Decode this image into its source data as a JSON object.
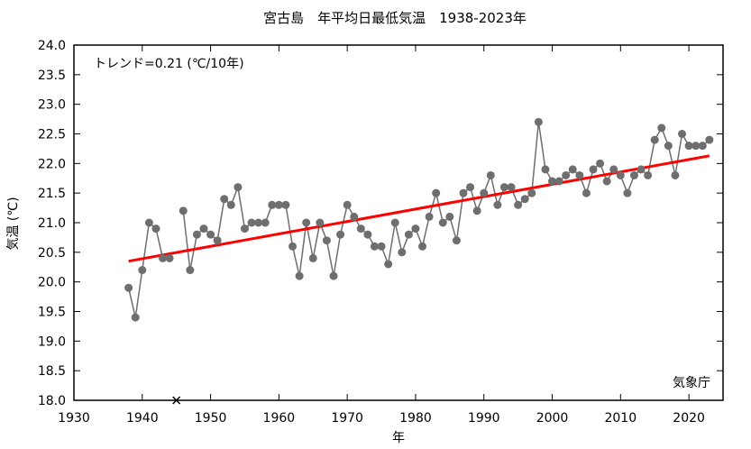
{
  "chart_data": {
    "type": "line",
    "title": "宮古島　年平均日最低気温　1938-2023年",
    "xlabel": "年",
    "ylabel": "気温 (℃)",
    "xlim": [
      1930,
      2025
    ],
    "ylim": [
      18.0,
      24.0
    ],
    "x_ticks": [
      "1930",
      "1940",
      "1950",
      "1960",
      "1970",
      "1980",
      "1990",
      "2000",
      "2010",
      "2020"
    ],
    "y_ticks": [
      "18.0",
      "18.5",
      "19.0",
      "19.5",
      "20.0",
      "20.5",
      "21.0",
      "21.5",
      "22.0",
      "22.5",
      "23.0",
      "23.5",
      "24.0"
    ],
    "trend_label": "トレンド=0.21 (℃/10年)",
    "source_label": "気象庁",
    "grid": false,
    "colors": {
      "series": "#6e6e6e",
      "trend": "#ff0000",
      "missing": "#000000"
    },
    "series": [
      {
        "x": [
          1938,
          1939,
          1940,
          1941,
          1942,
          1943,
          1944,
          1946,
          1947,
          1948,
          1949,
          1950,
          1951,
          1952,
          1953,
          1954,
          1955,
          1956,
          1957,
          1958,
          1959,
          1960,
          1961,
          1962,
          1963,
          1964,
          1965,
          1966,
          1967,
          1968,
          1969,
          1970,
          1971,
          1972,
          1973,
          1974,
          1975,
          1976,
          1977,
          1978,
          1979,
          1980,
          1981,
          1982,
          1983,
          1984,
          1985,
          1986,
          1987,
          1988,
          1989,
          1990,
          1991,
          1992,
          1993,
          1994,
          1995,
          1996,
          1997,
          1998,
          1999,
          2000,
          2001,
          2002,
          2003,
          2004,
          2005,
          2006,
          2007,
          2008,
          2009,
          2010,
          2011,
          2012,
          2013,
          2014,
          2015,
          2016,
          2017,
          2018,
          2019,
          2020,
          2021,
          2022,
          2023
        ],
        "values": [
          19.9,
          19.4,
          20.2,
          21.0,
          20.9,
          20.4,
          20.4,
          21.2,
          20.2,
          20.8,
          20.9,
          20.8,
          20.7,
          21.4,
          21.3,
          21.6,
          20.9,
          21.0,
          21.0,
          21.0,
          21.3,
          21.3,
          21.3,
          20.6,
          20.1,
          21.0,
          20.4,
          21.0,
          20.7,
          20.1,
          20.8,
          21.3,
          21.1,
          20.9,
          20.8,
          20.6,
          20.6,
          20.3,
          21.0,
          20.5,
          20.8,
          20.9,
          20.6,
          21.1,
          21.5,
          21.0,
          21.1,
          20.7,
          21.5,
          21.6,
          21.2,
          21.5,
          21.8,
          21.3,
          21.6,
          21.6,
          21.3,
          21.4,
          21.5,
          22.7,
          21.9,
          21.7,
          21.7,
          21.8,
          21.9,
          21.8,
          21.5,
          21.9,
          22.0,
          21.7,
          21.9,
          21.8,
          21.5,
          21.8,
          21.9,
          21.8,
          22.4,
          22.6,
          22.3,
          21.8,
          22.5,
          22.3,
          22.3,
          22.3,
          22.4
        ]
      }
    ],
    "trend": {
      "x": [
        1938,
        2023
      ],
      "values": [
        20.35,
        22.13
      ]
    },
    "missing": [
      1945
    ]
  }
}
